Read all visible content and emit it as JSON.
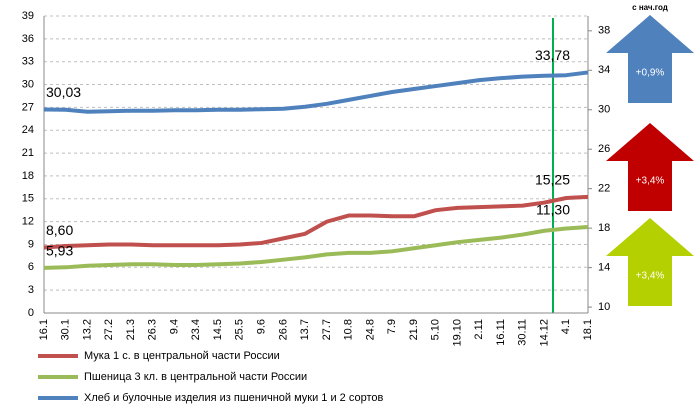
{
  "chart_data": {
    "type": "line",
    "categories": [
      "16.1",
      "30.1",
      "13.2",
      "27.2",
      "21.3",
      "26.3",
      "9.4",
      "23.4",
      "14.5",
      "25.5",
      "9.6",
      "26.6",
      "13.7",
      "27.7",
      "10.8",
      "24.8",
      "7.9",
      "21.9",
      "5.10",
      "19.10",
      "2.11",
      "16.11",
      "30.11",
      "14.12",
      "4.1",
      "18.1"
    ],
    "series": [
      {
        "name": "Мука 1 с. в центральной части России",
        "color": "#c0504d",
        "values": [
          8.6,
          8.8,
          8.9,
          9.0,
          9.0,
          8.9,
          8.9,
          8.9,
          8.9,
          9.0,
          9.2,
          9.8,
          10.4,
          12.0,
          12.8,
          12.8,
          12.7,
          12.7,
          13.5,
          13.8,
          13.9,
          14.0,
          14.1,
          14.5,
          15.1,
          15.25
        ],
        "value_labels": [
          "8,60",
          null,
          null,
          null,
          null,
          null,
          null,
          null,
          null,
          null,
          null,
          null,
          null,
          null,
          null,
          null,
          null,
          null,
          null,
          null,
          null,
          null,
          null,
          null,
          null,
          "15,25"
        ]
      },
      {
        "name": "Пшеница 3 кл. в центральной части России",
        "color": "#9bbb59",
        "values": [
          5.93,
          6.0,
          6.2,
          6.3,
          6.4,
          6.4,
          6.3,
          6.3,
          6.4,
          6.5,
          6.7,
          7.0,
          7.3,
          7.7,
          7.9,
          7.9,
          8.1,
          8.5,
          8.9,
          9.3,
          9.6,
          9.9,
          10.3,
          10.8,
          11.1,
          11.3
        ],
        "value_labels": [
          "5,93",
          null,
          null,
          null,
          null,
          null,
          null,
          null,
          null,
          null,
          null,
          null,
          null,
          null,
          null,
          null,
          null,
          null,
          null,
          null,
          null,
          null,
          null,
          null,
          null,
          "11,30"
        ]
      },
      {
        "name": "Хлеб и булочные изделия из пшеничной муки 1 и 2 сортов",
        "color": "#4f81bd",
        "axis": "y2",
        "values": [
          30.03,
          30.0,
          29.8,
          29.85,
          29.9,
          29.9,
          29.95,
          29.95,
          30.0,
          30.0,
          30.05,
          30.1,
          30.3,
          30.6,
          31.0,
          31.4,
          31.8,
          32.1,
          32.4,
          32.7,
          33.0,
          33.2,
          33.35,
          33.45,
          33.5,
          33.78
        ],
        "value_labels": [
          "30,03",
          null,
          null,
          null,
          null,
          null,
          null,
          null,
          null,
          null,
          null,
          null,
          null,
          null,
          null,
          null,
          null,
          null,
          null,
          null,
          null,
          null,
          null,
          null,
          null,
          "33,78"
        ]
      }
    ],
    "ylim": [
      0,
      39
    ],
    "yticks": [
      0,
      3,
      6,
      9,
      12,
      15,
      18,
      21,
      24,
      27,
      30,
      33,
      36,
      39
    ],
    "y2lim": [
      9.4,
      39.5
    ],
    "y2ticks": [
      10,
      14,
      18,
      22,
      26,
      30,
      34,
      38
    ],
    "grid": true,
    "side_title": "с нач.год",
    "side_changes": [
      {
        "label": "+0,9%",
        "color": "#4f81bd"
      },
      {
        "label": "+3,4%",
        "color": "#c00000"
      },
      {
        "label": "+3,4%",
        "color": "#b5d000"
      }
    ]
  }
}
